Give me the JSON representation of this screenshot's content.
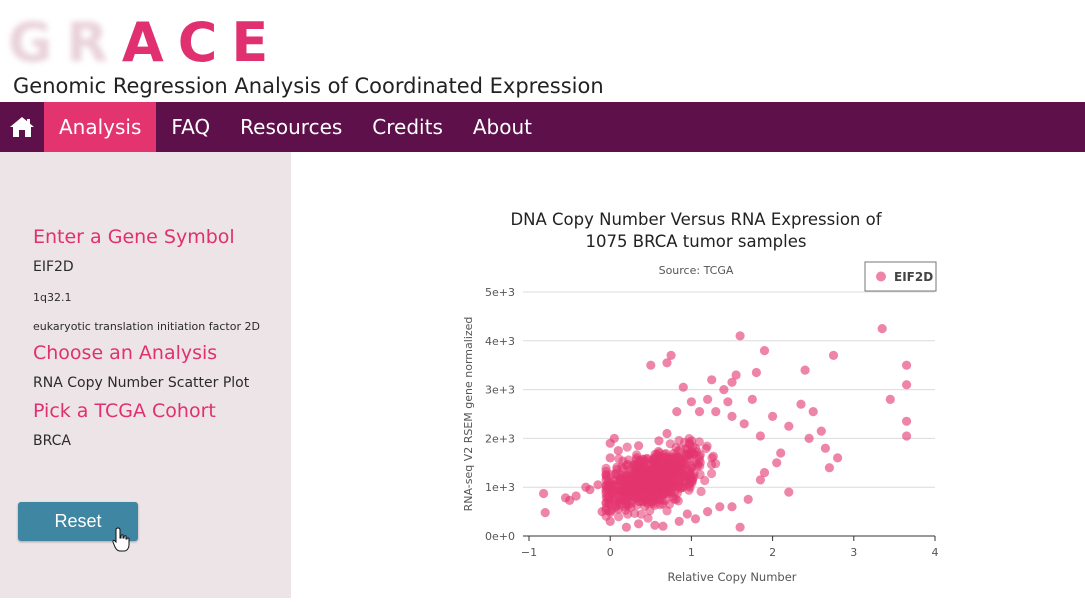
{
  "logo": {
    "text": "GRACE",
    "faded_letters": "GR",
    "bold_letters": "ACE",
    "accent_color": "#e0306f"
  },
  "subtitle": "Genomic Regression Analysis of Coordinated Expression",
  "nav": {
    "home_icon": "home-icon",
    "items": [
      {
        "label": "Analysis",
        "active": true
      },
      {
        "label": "FAQ",
        "active": false
      },
      {
        "label": "Resources",
        "active": false
      },
      {
        "label": "Credits",
        "active": false
      },
      {
        "label": "About",
        "active": false
      }
    ],
    "bg_color": "#5d1049",
    "active_color": "#e3346f"
  },
  "sidebar": {
    "gene_heading": "Enter a Gene Symbol",
    "gene_symbol": "EIF2D",
    "gene_location": "1q32.1",
    "gene_description": "eukaryotic translation initiation factor 2D",
    "analysis_heading": "Choose an Analysis",
    "analysis_value": "RNA Copy Number Scatter Plot",
    "cohort_heading": "Pick a TCGA Cohort",
    "cohort_value": "BRCA",
    "reset_label": "Reset",
    "reset_color": "#3f86a2"
  },
  "chart_data": {
    "type": "scatter",
    "title": "DNA Copy Number Versus RNA Expression of 1075 BRCA tumor samples",
    "title_line1": "DNA Copy Number Versus RNA Expression of",
    "title_line2": "1075 BRCA tumor samples",
    "subtitle": "Source: TCGA",
    "xlabel": "Relative Copy Number",
    "ylabel": "RNA-seq V2 RSEM gene normalized",
    "xlim": [
      -1,
      4
    ],
    "ylim": [
      0,
      5000
    ],
    "xticks": [
      "−1",
      "0",
      "1",
      "2",
      "3",
      "4"
    ],
    "yticks": [
      "0e+0",
      "1e+3",
      "2e+3",
      "3e+3",
      "4e+3",
      "5e+3"
    ],
    "grid": true,
    "legend_position": "top-right",
    "series": [
      {
        "name": "EIF2D",
        "color": "#e3346f",
        "points": [
          [
            -0.82,
            870
          ],
          [
            -0.8,
            480
          ],
          [
            -0.55,
            780
          ],
          [
            -0.5,
            730
          ],
          [
            -0.42,
            820
          ],
          [
            -0.3,
            1000
          ],
          [
            -0.25,
            950
          ],
          [
            -0.15,
            1050
          ],
          [
            -0.05,
            1150
          ],
          [
            0.0,
            1900
          ],
          [
            0.0,
            1600
          ],
          [
            0.05,
            2000
          ],
          [
            0.1,
            1750
          ],
          [
            0.2,
            1450
          ],
          [
            0.35,
            1850
          ],
          [
            0.55,
            1500
          ],
          [
            0.6,
            1950
          ],
          [
            0.7,
            2100
          ],
          [
            0.5,
            3500
          ],
          [
            0.7,
            3550
          ],
          [
            0.75,
            3700
          ],
          [
            0.9,
            3050
          ],
          [
            0.82,
            2550
          ],
          [
            1.0,
            2750
          ],
          [
            1.1,
            2550
          ],
          [
            1.2,
            2800
          ],
          [
            1.25,
            3200
          ],
          [
            1.3,
            2550
          ],
          [
            1.4,
            3000
          ],
          [
            1.45,
            2750
          ],
          [
            1.5,
            3150
          ],
          [
            1.55,
            3300
          ],
          [
            1.6,
            4100
          ],
          [
            1.5,
            2450
          ],
          [
            1.65,
            2300
          ],
          [
            1.75,
            2800
          ],
          [
            1.8,
            3350
          ],
          [
            1.85,
            2050
          ],
          [
            1.9,
            3800
          ],
          [
            2.0,
            2450
          ],
          [
            2.1,
            1700
          ],
          [
            2.2,
            2250
          ],
          [
            2.35,
            2700
          ],
          [
            2.4,
            3400
          ],
          [
            2.45,
            2000
          ],
          [
            2.5,
            2550
          ],
          [
            2.6,
            2150
          ],
          [
            2.65,
            1800
          ],
          [
            2.7,
            1400
          ],
          [
            2.75,
            3700
          ],
          [
            2.8,
            1600
          ],
          [
            2.2,
            900
          ],
          [
            1.6,
            180
          ],
          [
            3.35,
            4250
          ],
          [
            3.45,
            2800
          ],
          [
            3.65,
            3500
          ],
          [
            3.65,
            3100
          ],
          [
            3.65,
            2350
          ],
          [
            3.65,
            2050
          ],
          [
            1.85,
            1150
          ],
          [
            1.5,
            600
          ],
          [
            0.2,
            180
          ],
          [
            0.35,
            250
          ],
          [
            0.55,
            220
          ],
          [
            0.65,
            200
          ],
          [
            0.85,
            300
          ],
          [
            0.95,
            450
          ],
          [
            1.05,
            350
          ],
          [
            1.2,
            500
          ],
          [
            1.35,
            600
          ],
          [
            1.7,
            750
          ],
          [
            1.9,
            1300
          ],
          [
            2.05,
            1500
          ],
          [
            0.0,
            300
          ],
          [
            -0.1,
            500
          ],
          [
            0.1,
            550
          ]
        ]
      }
    ]
  }
}
